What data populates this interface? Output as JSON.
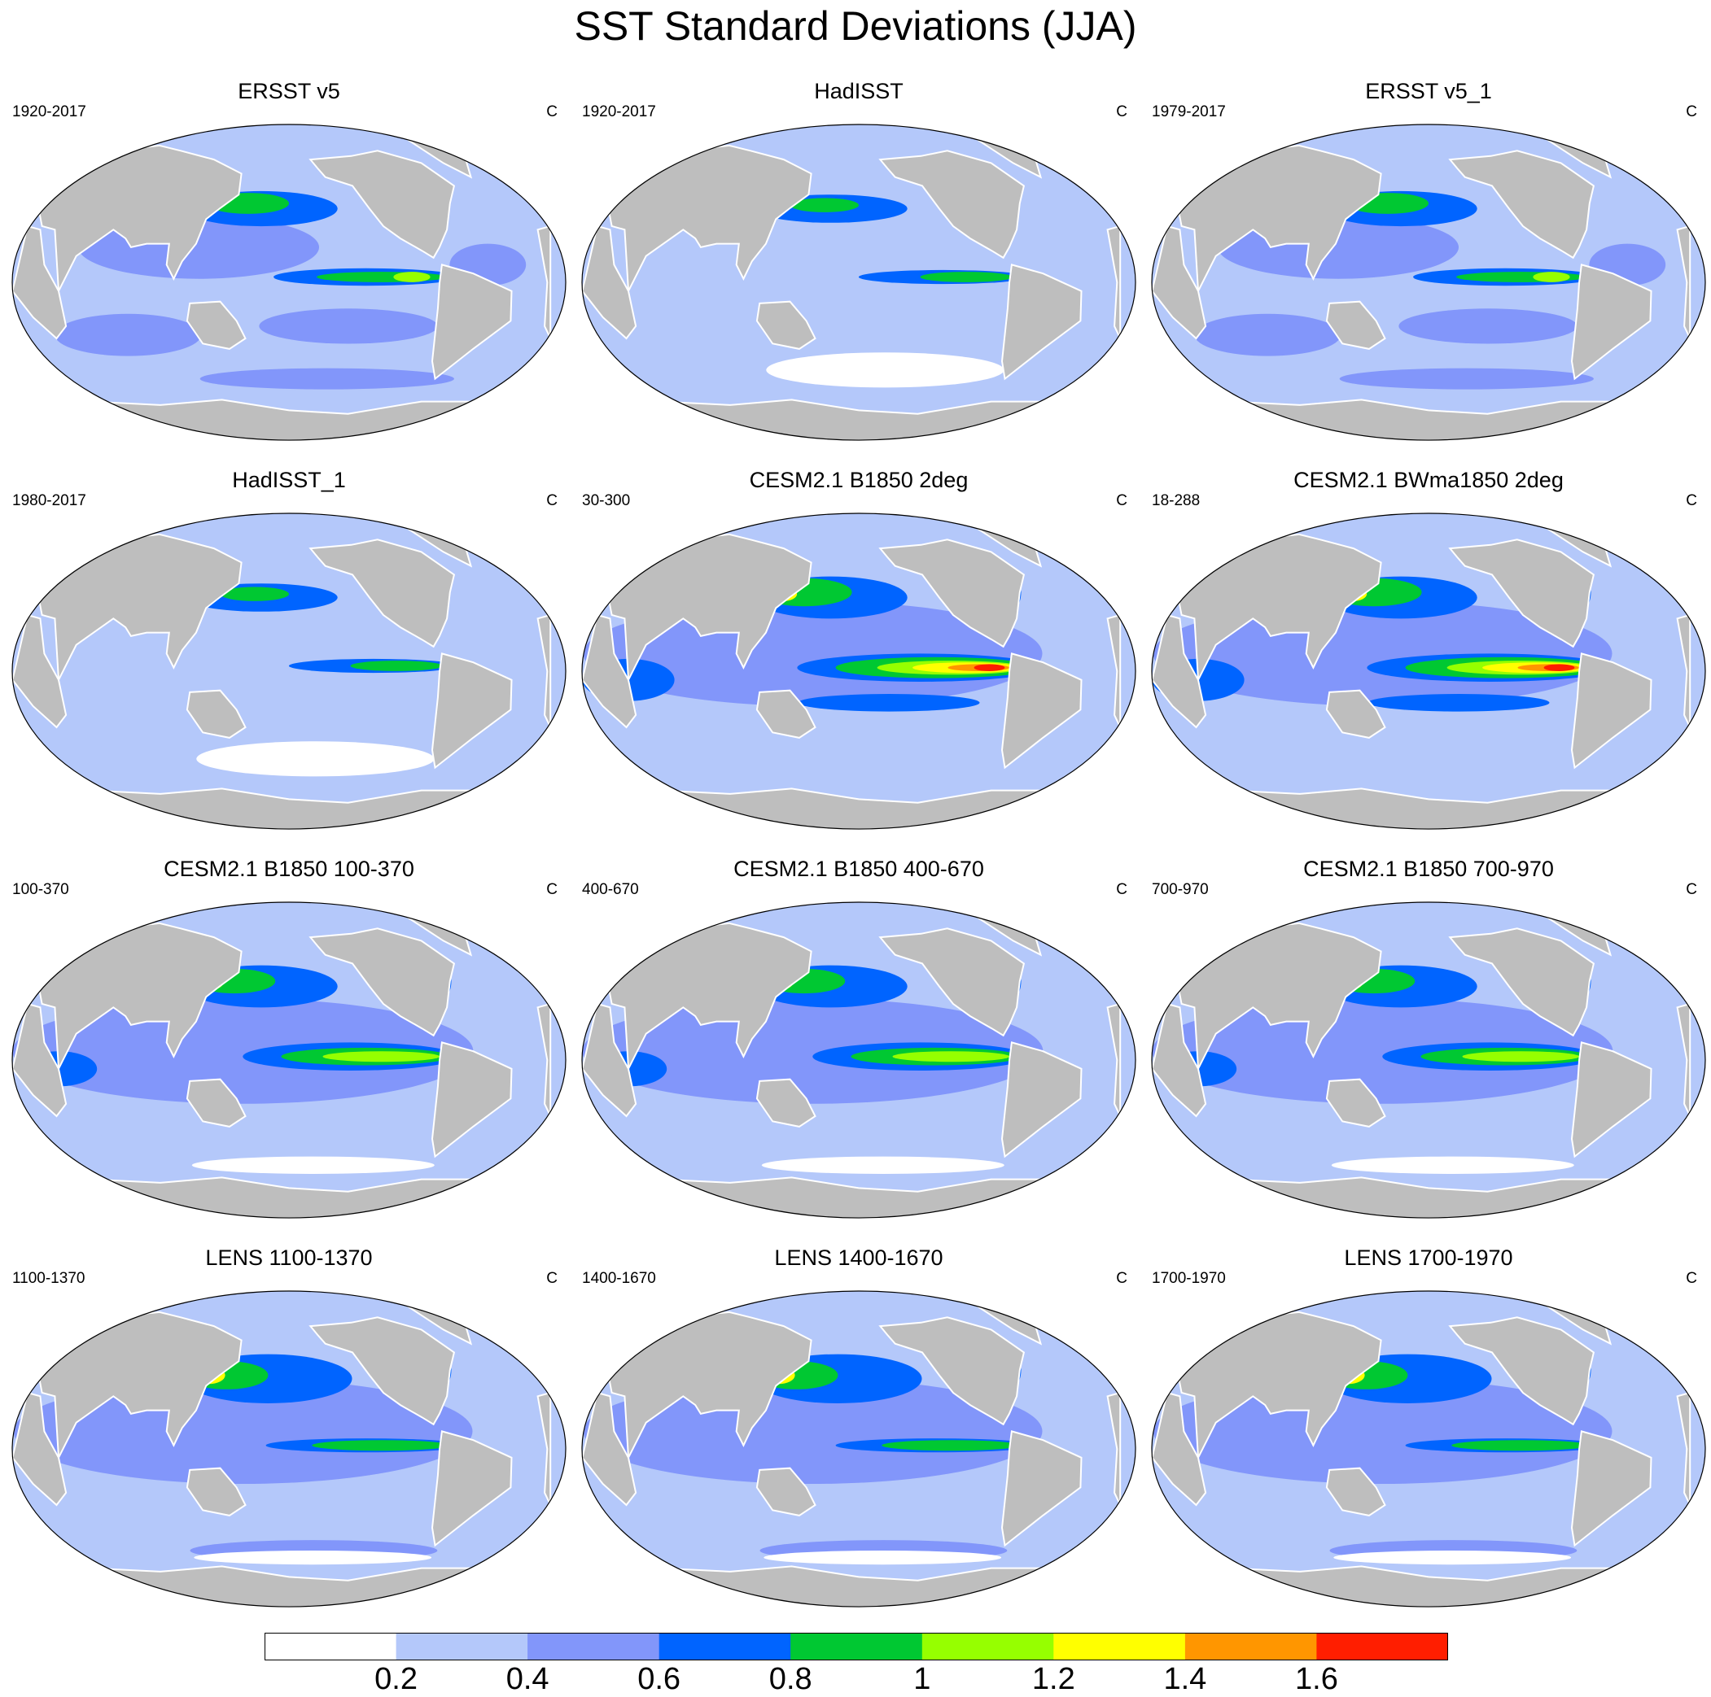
{
  "title": "SST Standard Deviations (JJA)",
  "panels": [
    {
      "title": "ERSST v5",
      "period": "1920-2017",
      "unit": "C",
      "style": "obs"
    },
    {
      "title": "HadISST",
      "period": "1920-2017",
      "unit": "C",
      "style": "obs_had"
    },
    {
      "title": "ERSST v5_1",
      "period": "1979-2017",
      "unit": "C",
      "style": "obs"
    },
    {
      "title": "HadISST_1",
      "period": "1980-2017",
      "unit": "C",
      "style": "obs_had"
    },
    {
      "title": "CESM2.1 B1850 2deg",
      "period": "30-300",
      "unit": "C",
      "style": "strong"
    },
    {
      "title": "CESM2.1 BWma1850 2deg",
      "period": "18-288",
      "unit": "C",
      "style": "strong"
    },
    {
      "title": "CESM2.1 B1850 100-370",
      "period": "100-370",
      "unit": "C",
      "style": "model"
    },
    {
      "title": "CESM2.1 B1850 400-670",
      "period": "400-670",
      "unit": "C",
      "style": "model"
    },
    {
      "title": "CESM2.1 B1850 700-970",
      "period": "700-970",
      "unit": "C",
      "style": "model"
    },
    {
      "title": "LENS 1100-1370",
      "period": "1100-1370",
      "unit": "C",
      "style": "lens"
    },
    {
      "title": "LENS 1400-1670",
      "period": "1400-1670",
      "unit": "C",
      "style": "lens"
    },
    {
      "title": "LENS 1700-1970",
      "period": "1700-1970",
      "unit": "C",
      "style": "lens"
    }
  ],
  "colorbar": {
    "levels": [
      "0.2",
      "0.4",
      "0.6",
      "0.8",
      "1",
      "1.2",
      "1.4",
      "1.6"
    ],
    "colors": [
      "#ffffff",
      "#b4c8fa",
      "#8296fa",
      "#0064ff",
      "#00c832",
      "#96ff00",
      "#ffff00",
      "#ff9600",
      "#ff1e00"
    ]
  },
  "land_color": "#bebebe"
}
